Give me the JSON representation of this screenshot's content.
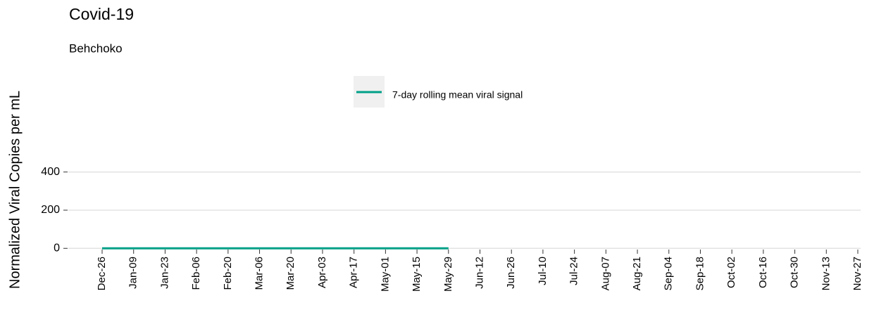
{
  "chart_data": {
    "type": "line",
    "title": "Covid-19",
    "subtitle": "Behchoko",
    "y_label": "Normalized Viral Copies per mL",
    "categories": [
      "Dec-26",
      "Jan-09",
      "Jan-23",
      "Feb-06",
      "Feb-20",
      "Mar-06",
      "Mar-20",
      "Apr-03",
      "Apr-17",
      "May-01",
      "May-15",
      "May-29",
      "Jun-12",
      "Jun-26",
      "Jul-10",
      "Jul-24",
      "Aug-07",
      "Aug-21",
      "Sep-04",
      "Sep-18",
      "Oct-02",
      "Oct-16",
      "Oct-30",
      "Nov-13",
      "Nov-27"
    ],
    "series": [
      {
        "name": "7-day rolling mean viral signal",
        "color": "#00a087",
        "values": [
          0,
          0,
          0,
          0,
          0,
          0,
          0,
          0,
          0,
          0,
          0,
          0,
          null,
          null,
          null,
          null,
          null,
          null,
          null,
          null,
          null,
          null,
          null,
          null,
          null
        ]
      }
    ],
    "ylim": [
      -10,
      410
    ],
    "yticks": [
      0,
      200,
      400
    ],
    "grid": true,
    "legend": "top"
  }
}
